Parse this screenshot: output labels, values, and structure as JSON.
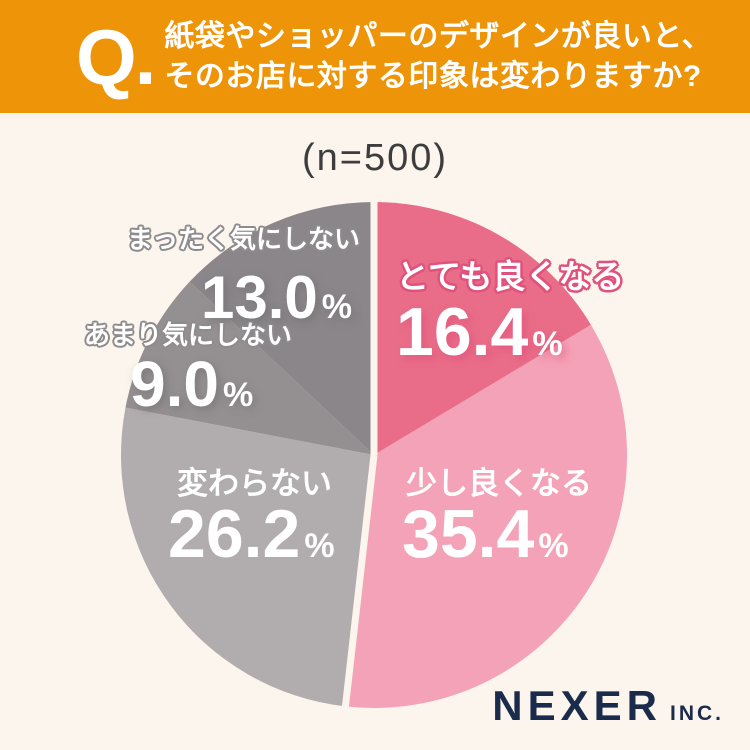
{
  "header": {
    "q_mark": "Q.",
    "title_line1": "紙袋やショッパーのデザインが良いと、",
    "title_line2": "そのお店に対する印象は変わりますか?",
    "bg_color": "#ED9409",
    "text_color": "#FFFFFF"
  },
  "sample_label": "(n=500)",
  "chart_data": {
    "type": "pie",
    "title": "紙袋やショッパーのデザインが良いと、そのお店に対する印象は変わりますか?",
    "n": 500,
    "start_angle_deg": 0,
    "direction": "clockwise",
    "percent_sign": "%",
    "segments": [
      {
        "label": "とても良くなる",
        "value": 16.4,
        "display_value": "16.4",
        "color": "#E96D88"
      },
      {
        "label": "少し良くなる",
        "value": 35.4,
        "display_value": "35.4",
        "color": "#F4A2B7"
      },
      {
        "label": "変わらない",
        "value": 26.2,
        "display_value": "26.2",
        "color": "#B1ACAE"
      },
      {
        "label": "あまり気にしない",
        "value": 9.0,
        "display_value": "9.0",
        "color": "#949091"
      },
      {
        "label": "まったく気にしない",
        "value": 13.0,
        "display_value": "13.0",
        "color": "#8A8689"
      }
    ],
    "group_divider": {
      "color": "#FBF5ED",
      "width": 7,
      "at_segment_starts": [
        0,
        2
      ]
    },
    "legend_position": "on-slices",
    "background_color": "#FBF5ED"
  },
  "logo": {
    "name": "NEXER",
    "suffix": "INC.",
    "color": "#1B2B4B"
  }
}
